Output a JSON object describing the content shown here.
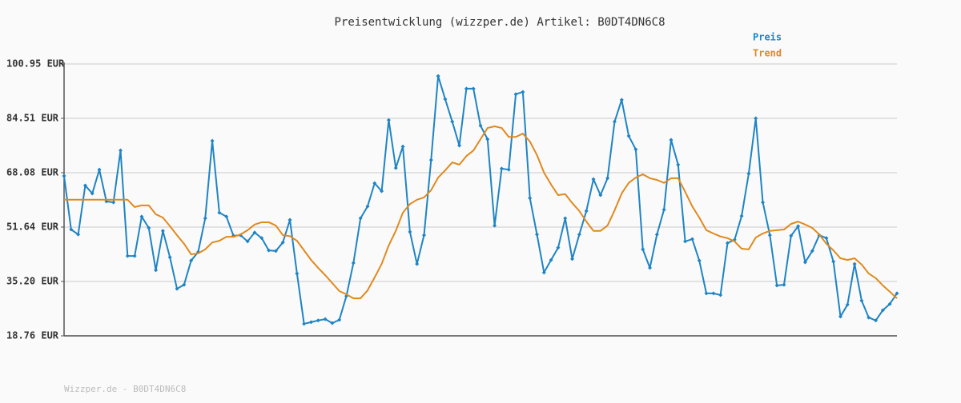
{
  "chart_data": {
    "type": "line",
    "title": "Preisentwicklung (wizzper.de) Artikel: B0DT4DN6C8",
    "footer": "Wizzper.de - B0DT4DN6C8",
    "ylim": [
      18.76,
      100.95
    ],
    "yticks": [
      {
        "value": 18.76,
        "label": "18.76 EUR"
      },
      {
        "value": 35.2,
        "label": "35.20 EUR"
      },
      {
        "value": 51.64,
        "label": "51.64 EUR"
      },
      {
        "value": 68.08,
        "label": "68.08 EUR"
      },
      {
        "value": 84.51,
        "label": "84.51 EUR"
      },
      {
        "value": 100.95,
        "label": "100.95 EUR"
      }
    ],
    "grid": true,
    "legend": "top-right",
    "series": [
      {
        "name": "Preis",
        "color": "#1f84c4",
        "markers": true,
        "values": [
          67.1,
          50.9,
          49.4,
          64.2,
          61.8,
          69.0,
          59.4,
          59.1,
          74.8,
          42.9,
          42.9,
          54.8,
          51.4,
          38.6,
          50.5,
          42.5,
          33.0,
          34.2,
          41.5,
          44.1,
          54.3,
          77.7,
          56.0,
          54.8,
          49.0,
          49.2,
          47.3,
          50.0,
          48.3,
          44.6,
          44.4,
          47.0,
          53.8,
          37.6,
          22.4,
          22.9,
          23.4,
          23.8,
          22.6,
          23.6,
          30.8,
          40.8,
          54.3,
          57.9,
          64.9,
          62.5,
          84.0,
          69.5,
          76.0,
          50.2,
          40.5,
          49.2,
          71.9,
          97.3,
          90.3,
          83.5,
          76.3,
          93.5,
          93.5,
          82.3,
          78.2,
          52.1,
          69.3,
          69.0,
          91.8,
          92.5,
          60.4,
          49.4,
          37.9,
          41.7,
          45.4,
          54.3,
          42.0,
          49.4,
          56.5,
          66.1,
          61.3,
          66.4,
          83.5,
          90.1,
          79.2,
          75.1,
          44.9,
          39.3,
          49.4,
          56.9,
          78.0,
          70.5,
          47.3,
          48.0,
          41.5,
          31.6,
          31.6,
          31.1,
          46.8,
          47.8,
          55.0,
          67.8,
          84.5,
          59.1,
          49.2,
          34.0,
          34.2,
          49.0,
          51.9,
          41.0,
          44.4,
          49.2,
          48.3,
          41.2,
          24.6,
          28.2,
          40.5,
          29.4,
          24.3,
          23.4,
          26.5,
          28.4,
          31.6
        ]
      },
      {
        "name": "Trend",
        "color": "#e08a1e",
        "markers": false,
        "values": [
          59.9,
          59.9,
          59.9,
          59.9,
          59.9,
          59.9,
          59.9,
          59.9,
          59.9,
          59.9,
          57.7,
          58.2,
          58.2,
          55.5,
          54.5,
          51.9,
          49.2,
          46.6,
          43.4,
          43.7,
          44.9,
          47.0,
          47.5,
          48.7,
          48.7,
          49.4,
          50.7,
          52.4,
          53.1,
          53.1,
          52.1,
          49.2,
          48.9,
          47.5,
          44.6,
          41.7,
          39.3,
          37.1,
          34.7,
          32.3,
          31.3,
          30.1,
          30.1,
          32.5,
          36.4,
          40.5,
          46.1,
          50.5,
          56.0,
          58.6,
          59.9,
          60.6,
          62.8,
          66.6,
          68.8,
          71.2,
          70.5,
          73.1,
          74.8,
          78.2,
          81.6,
          82.1,
          81.6,
          78.9,
          78.9,
          79.9,
          77.5,
          73.4,
          68.1,
          64.5,
          61.3,
          61.6,
          58.9,
          56.5,
          53.3,
          50.5,
          50.5,
          52.1,
          56.7,
          61.8,
          65.0,
          66.6,
          67.6,
          66.4,
          65.9,
          65.0,
          66.4,
          66.4,
          62.3,
          57.9,
          54.5,
          50.7,
          49.7,
          48.8,
          48.3,
          47.3,
          45.1,
          44.9,
          48.5,
          49.7,
          50.5,
          50.7,
          50.9,
          52.6,
          53.3,
          52.4,
          51.4,
          49.4,
          46.6,
          44.6,
          42.2,
          41.7,
          42.2,
          40.3,
          37.6,
          36.2,
          34.0,
          32.1,
          30.1
        ]
      }
    ]
  }
}
